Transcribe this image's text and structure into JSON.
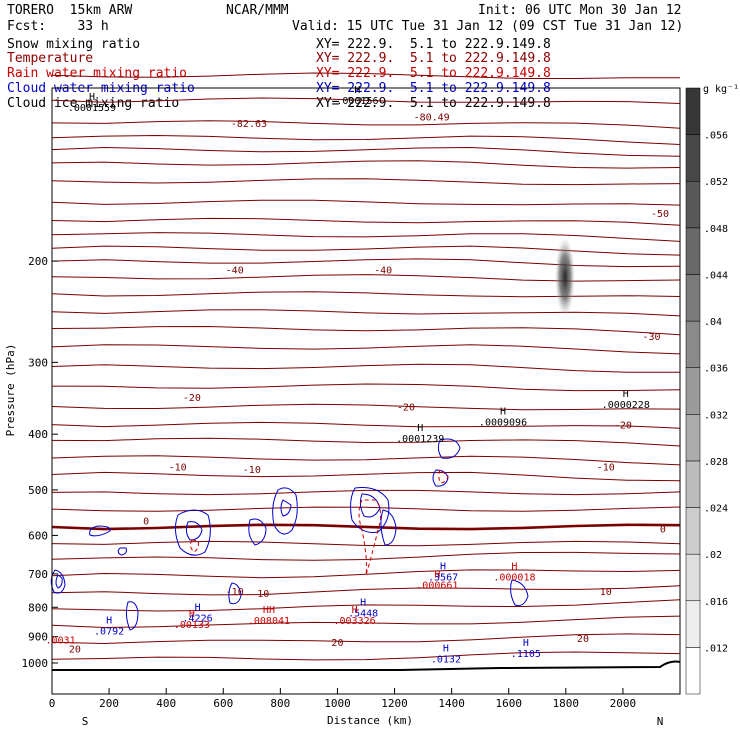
{
  "header": {
    "model": "TORERO  15km ARW",
    "org": "NCAR/MMM",
    "init": "Init: 06 UTC Mon 30 Jan 12",
    "fcst": "Fcst:    33 h",
    "valid": "Valid: 15 UTC Tue 31 Jan 12 (09 CST Tue 31 Jan 12)",
    "fields": [
      {
        "name": "Snow mixing ratio",
        "xy": "XY= 222.9.  5.1 to 222.9.149.8",
        "color": "#000000"
      },
      {
        "name": "Temperature",
        "xy": "XY= 222.9.  5.1 to 222.9.149.8",
        "color": "#8b0000"
      },
      {
        "name": "Rain water mixing ratio",
        "xy": "XY= 222.9.  5.1 to 222.9.149.8",
        "color": "#cc0000"
      },
      {
        "name": "Cloud water mixing ratio",
        "xy": "XY= 222.9.  5.1 to 222.9.149.8",
        "color": "#0000cc"
      },
      {
        "name": "Cloud ice mixing ratio",
        "xy": "XY= 222.9.  5.1 to 222.9.149.8",
        "color": "#000000"
      }
    ]
  },
  "chart_data": {
    "type": "contour",
    "xlabel": "Distance (km)",
    "ylabel": "Pressure (hPa)",
    "xlim": [
      0,
      2200
    ],
    "ylim": [
      1050,
      100
    ],
    "x_ticks": [
      0,
      200,
      400,
      600,
      800,
      1000,
      1200,
      1400,
      1600,
      1800,
      2000
    ],
    "y_ticks": [
      200,
      300,
      400,
      500,
      600,
      700,
      800,
      900,
      1000
    ],
    "x_ends": {
      "left": "S",
      "right": "N"
    },
    "colorbar": {
      "units": "g kg⁻¹",
      "labels": [
        ".012",
        ".016",
        ".02",
        ".024",
        ".028",
        ".032",
        ".036",
        ".04",
        ".044",
        ".048",
        ".052",
        ".056"
      ]
    },
    "temperature_contour_labels": [
      {
        "text": "-82.63",
        "x": 690,
        "p": 115
      },
      {
        "text": "-80.49",
        "x": 1330,
        "p": 112
      },
      {
        "text": "-50",
        "x": 2130,
        "p": 165
      },
      {
        "text": "-40",
        "x": 640,
        "p": 207
      },
      {
        "text": "-40",
        "x": 1160,
        "p": 207
      },
      {
        "text": "-30",
        "x": 2100,
        "p": 270
      },
      {
        "text": "-20",
        "x": 490,
        "p": 345
      },
      {
        "text": "-20",
        "x": 1240,
        "p": 358
      },
      {
        "text": "-20",
        "x": 2000,
        "p": 385
      },
      {
        "text": "-10",
        "x": 440,
        "p": 455
      },
      {
        "text": "-10",
        "x": 700,
        "p": 460
      },
      {
        "text": "-10",
        "x": 1940,
        "p": 455
      },
      {
        "text": "0",
        "x": 330,
        "p": 565
      },
      {
        "text": "0",
        "x": 2140,
        "p": 583
      },
      {
        "text": "-10",
        "x": 640,
        "p": 750
      },
      {
        "text": "10",
        "x": 740,
        "p": 755
      },
      {
        "text": "10",
        "x": 1940,
        "p": 750
      },
      {
        "text": "20",
        "x": 80,
        "p": 943
      },
      {
        "text": "20",
        "x": 1000,
        "p": 920
      },
      {
        "text": "20",
        "x": 1860,
        "p": 905
      }
    ],
    "extrema": [
      {
        "kind": "H",
        "value": ".0001559",
        "x": 140,
        "p": 105,
        "color": "#000000"
      },
      {
        "kind": "H",
        "value": ".000156",
        "x": 1070,
        "p": 102,
        "color": "#000000"
      },
      {
        "kind": "H",
        "value": ".0001239",
        "x": 1290,
        "p": 395,
        "color": "#000000"
      },
      {
        "kind": "H",
        "value": ".0009096",
        "x": 1580,
        "p": 370,
        "color": "#000000"
      },
      {
        "kind": "H",
        "value": ".0000228",
        "x": 2010,
        "p": 345,
        "color": "#000000"
      },
      {
        "kind": "H",
        "value": ".3567",
        "x": 1370,
        "p": 688,
        "color": "#0000cc"
      },
      {
        "kind": "H",
        "value": ".000018",
        "x": 1620,
        "p": 688,
        "color": "#cc0000"
      },
      {
        "kind": "H",
        "value": ".000661",
        "x": 1350,
        "p": 710,
        "color": "#cc0000"
      },
      {
        "kind": "H",
        "value": ".4226",
        "x": 510,
        "p": 810,
        "color": "#0000cc"
      },
      {
        "kind": "H",
        "value": ".00133",
        "x": 490,
        "p": 832,
        "color": "#cc0000"
      },
      {
        "kind": "HH",
        "value": ".008041",
        "x": 760,
        "p": 818,
        "color": "#cc0000"
      },
      {
        "kind": "H",
        "value": ".5448",
        "x": 1090,
        "p": 795,
        "color": "#0000cc"
      },
      {
        "kind": "H",
        "value": ".003326",
        "x": 1060,
        "p": 818,
        "color": "#cc0000"
      },
      {
        "kind": "H",
        "value": ".0792",
        "x": 200,
        "p": 853,
        "color": "#0000cc"
      },
      {
        "kind": "",
        "value": ".0031",
        "x": 30,
        "p": 885,
        "color": "#cc0000"
      },
      {
        "kind": "H",
        "value": ".0132",
        "x": 1380,
        "p": 955,
        "color": "#0000cc"
      },
      {
        "kind": "H",
        "value": ".1105",
        "x": 1660,
        "p": 935,
        "color": "#0000cc"
      }
    ]
  }
}
